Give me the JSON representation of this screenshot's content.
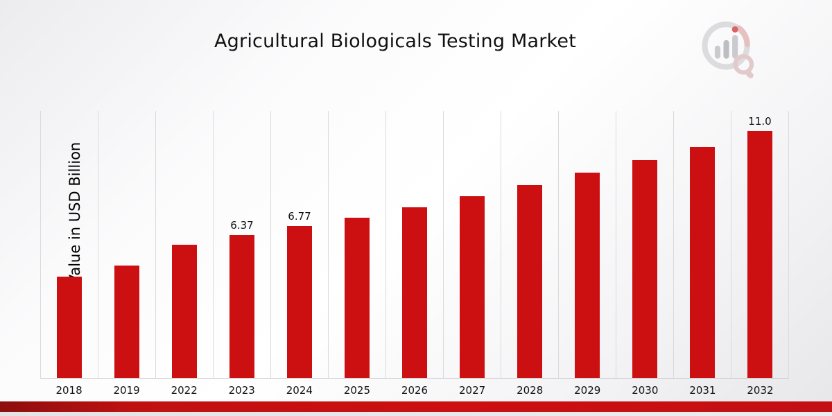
{
  "chart_data": {
    "type": "bar",
    "title": "Agricultural Biologicals Testing Market",
    "ylabel": "Market Value in USD Billion",
    "categories": [
      "2018",
      "2019",
      "2022",
      "2023",
      "2024",
      "2025",
      "2026",
      "2027",
      "2028",
      "2029",
      "2030",
      "2031",
      "2032"
    ],
    "points": [
      {
        "year": "2018",
        "value": 4.5
      },
      {
        "year": "2019",
        "value": 5.0
      },
      {
        "year": "2022",
        "value": 5.95
      },
      {
        "year": "2023",
        "value": 6.37,
        "label": "6.37"
      },
      {
        "year": "2024",
        "value": 6.77,
        "label": "6.77"
      },
      {
        "year": "2025",
        "value": 7.15
      },
      {
        "year": "2026",
        "value": 7.6
      },
      {
        "year": "2027",
        "value": 8.1
      },
      {
        "year": "2028",
        "value": 8.6
      },
      {
        "year": "2029",
        "value": 9.15
      },
      {
        "year": "2030",
        "value": 9.7
      },
      {
        "year": "2031",
        "value": 10.3
      },
      {
        "year": "2032",
        "value": 11.0,
        "label": "11.0"
      }
    ],
    "ylim": [
      0,
      11.9
    ],
    "bar_color": "#cc0f10",
    "grid": "vertical",
    "legend": "none"
  },
  "branding": {
    "logo_name": "market-research-logo"
  },
  "colors": {
    "bar": "#cc0f10",
    "gridline": "#dadadd",
    "footer_band": "#cc0f10",
    "text": "#111111"
  }
}
